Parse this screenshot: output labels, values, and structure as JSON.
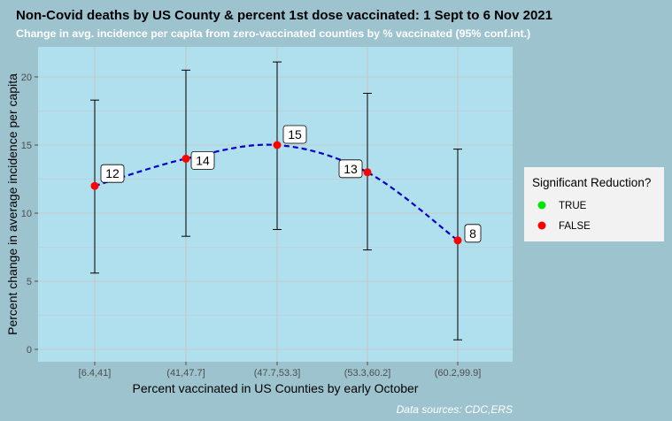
{
  "chart_data": {
    "type": "line",
    "title": "Non-Covid deaths by US County & percent 1st dose vaccinated: 1 Sept to 6 Nov 2021",
    "subtitle": "Change in avg. incidence per capita from zero-vaccinated counties by % vaccinated (95% conf.int.)",
    "xlabel": "Percent vaccinated in US Counties by early October",
    "ylabel": "Percent change in average incidence per capita",
    "caption": "Data sources: CDC,ERS",
    "categories": [
      "[6.4,41]",
      "(41,47.7]",
      "(47.7,53.3]",
      "(53.3,60.2]",
      "(60.2,99.9]"
    ],
    "series": [
      {
        "values": [
          12,
          14,
          15,
          13,
          8
        ],
        "lower": [
          5.6,
          8.3,
          8.8,
          7.3,
          0.7
        ],
        "upper": [
          18.3,
          20.5,
          21.1,
          18.8,
          14.7
        ],
        "labels": [
          "12",
          "14",
          "15",
          "13",
          "8"
        ],
        "significant": [
          false,
          false,
          false,
          false,
          false
        ]
      }
    ],
    "ylim": [
      -1,
      22
    ],
    "yticks": [
      0,
      5,
      10,
      15,
      20
    ],
    "grid": true,
    "legend": {
      "title": "Significant Reduction?",
      "position": "right",
      "entries": [
        {
          "label": "TRUE",
          "color": "#00e600"
        },
        {
          "label": "FALSE",
          "color": "#ff0000"
        }
      ]
    },
    "colors": {
      "page_bg": "#9dc3cf",
      "panel_bg": "#b0dfee",
      "grid": "#c4c8ca",
      "line": "#0000cc",
      "point_false": "#ff0000",
      "point_true": "#00e600",
      "subtitle": "#ffffff"
    }
  }
}
